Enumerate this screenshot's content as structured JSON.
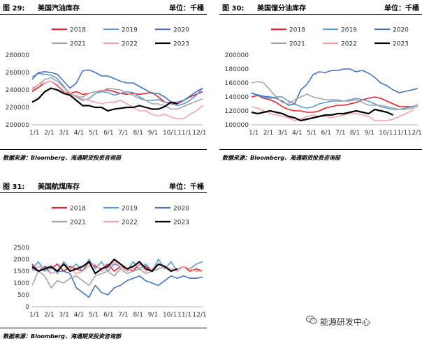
{
  "charts": [
    {
      "figure_number": "图 29:",
      "title": "美国汽油库存",
      "unit": "单位：千桶",
      "source": "数据来源：Bloomberg、海通期货投资咨询部"
    },
    {
      "figure_number": "图 30:",
      "title": "美国馏分油库存",
      "unit": "单位：千桶",
      "source": "数据来源：Bloomberg、海通期货投资咨询部"
    },
    {
      "figure_number": "图 31:",
      "title": "美国航煤库存",
      "unit": "单位：千桶",
      "source": "数据来源：Bloomberg、海通期货投资咨询部"
    }
  ],
  "watermark": {
    "text": "能源研发中心",
    "icon": "wechat-icon"
  },
  "series_colors": {
    "2018": "#e8202a",
    "2019": "#5b9bd5",
    "2020": "#4472c4",
    "2021": "#a6a6a6",
    "2022": "#f4a6a6",
    "2023": "#000000"
  },
  "chart_data": [
    {
      "type": "line",
      "title": "",
      "x_ticks": [
        "1/1",
        "2/1",
        "3/1",
        "4/1",
        "5/1",
        "6/1",
        "7/1",
        "8/1",
        "9/1",
        "10/1",
        "11/1",
        "12/1"
      ],
      "ylim": [
        200000,
        280000
      ],
      "y_ticks": [
        "200000",
        "220000",
        "240000",
        "260000",
        "280000"
      ],
      "legend_position": "top",
      "series": [
        {
          "name": "2018",
          "values": [
            238000,
            243000,
            248000,
            250000,
            245000,
            238000,
            236000,
            238000,
            235000,
            236000,
            238000,
            239000,
            240000,
            238000,
            236000,
            235000,
            236000,
            235000,
            236000,
            237000,
            232000,
            226000,
            225000,
            224000,
            228000,
            232000,
            235000,
            238000
          ]
        },
        {
          "name": "2019",
          "values": [
            255000,
            259000,
            258000,
            257000,
            253000,
            244000,
            236000,
            232000,
            228000,
            230000,
            236000,
            238000,
            237000,
            234000,
            236000,
            238000,
            237000,
            232000,
            228000,
            228000,
            229000,
            226000,
            224000,
            222000,
            224000,
            228000,
            234000,
            242000
          ]
        },
        {
          "name": "2020",
          "values": [
            252000,
            260000,
            261000,
            260000,
            258000,
            250000,
            242000,
            248000,
            262000,
            263000,
            260000,
            256000,
            256000,
            253000,
            250000,
            248000,
            248000,
            244000,
            240000,
            236000,
            236000,
            232000,
            226000,
            226000,
            228000,
            233000,
            238000,
            242000
          ]
        },
        {
          "name": "2021",
          "values": [
            240000,
            246000,
            252000,
            254000,
            250000,
            243000,
            236000,
            232000,
            232000,
            236000,
            238000,
            238000,
            242000,
            241000,
            240000,
            236000,
            234000,
            230000,
            228000,
            224000,
            224000,
            222000,
            218000,
            218000,
            221000,
            224000,
            227000,
            230000
          ]
        },
        {
          "name": "2022",
          "values": [
            242000,
            246000,
            248000,
            250000,
            246000,
            239000,
            234000,
            234000,
            230000,
            228000,
            226000,
            224000,
            226000,
            226000,
            228000,
            224000,
            220000,
            216000,
            216000,
            212000,
            210000,
            212000,
            209000,
            207000,
            207000,
            212000,
            216000,
            222000
          ]
        },
        {
          "name": "2023",
          "values": [
            226000,
            230000,
            238000,
            242000,
            240000,
            236000,
            234000,
            228000,
            222000,
            222000,
            220000,
            220000,
            216000,
            218000,
            219000,
            220000,
            220000,
            222000,
            220000,
            218000,
            218000,
            221000,
            226000,
            224000
          ]
        }
      ]
    },
    {
      "type": "line",
      "title": "",
      "x_ticks": [
        "1/1",
        "2/1",
        "3/1",
        "4/1",
        "5/1",
        "6/1",
        "7/1",
        "8/1",
        "9/1",
        "10/1",
        "11/1",
        "12/1"
      ],
      "ylim": [
        100000,
        200000
      ],
      "y_ticks": [
        "100000",
        "120000",
        "140000",
        "160000",
        "180000",
        "200000"
      ],
      "legend_position": "top",
      "series": [
        {
          "name": "2018",
          "values": [
            140000,
            142000,
            138000,
            136000,
            132000,
            126000,
            122000,
            120000,
            120000,
            118000,
            118000,
            120000,
            124000,
            126000,
            128000,
            128000,
            130000,
            132000,
            136000,
            138000,
            140000,
            138000,
            134000,
            130000,
            126000,
            126000,
            126000,
            128000
          ]
        },
        {
          "name": "2019",
          "values": [
            146000,
            142000,
            140000,
            138000,
            140000,
            140000,
            134000,
            130000,
            126000,
            124000,
            126000,
            130000,
            132000,
            134000,
            134000,
            134000,
            136000,
            138000,
            136000,
            134000,
            130000,
            126000,
            124000,
            122000,
            122000,
            124000,
            126000,
            128000
          ]
        },
        {
          "name": "2020",
          "values": [
            145000,
            143000,
            141000,
            140000,
            138000,
            134000,
            128000,
            130000,
            150000,
            158000,
            172000,
            176000,
            175000,
            178000,
            178000,
            180000,
            180000,
            176000,
            178000,
            174000,
            168000,
            160000,
            156000,
            150000,
            146000,
            148000,
            150000,
            152000
          ]
        },
        {
          "name": "2021",
          "values": [
            160000,
            162000,
            160000,
            150000,
            140000,
            132000,
            130000,
            136000,
            140000,
            144000,
            140000,
            138000,
            136000,
            136000,
            136000,
            134000,
            134000,
            136000,
            132000,
            128000,
            128000,
            128000,
            126000,
            124000,
            122000,
            122000,
            124000,
            126000
          ]
        },
        {
          "name": "2022",
          "values": [
            126000,
            124000,
            120000,
            116000,
            114000,
            112000,
            110000,
            106000,
            108000,
            112000,
            114000,
            112000,
            112000,
            110000,
            112000,
            114000,
            116000,
            116000,
            114000,
            112000,
            106000,
            106000,
            106000,
            108000,
            112000,
            116000,
            120000,
            130000
          ]
        },
        {
          "name": "2023",
          "values": [
            118000,
            116000,
            118000,
            120000,
            118000,
            116000,
            112000,
            110000,
            106000,
            108000,
            110000,
            112000,
            114000,
            114000,
            116000,
            116000,
            118000,
            120000,
            118000,
            116000,
            122000,
            120000,
            118000,
            114000
          ]
        }
      ]
    },
    {
      "type": "line",
      "title": "",
      "x_ticks": [
        "1/1",
        "2/1",
        "3/1",
        "4/1",
        "5/1",
        "6/1",
        "7/1",
        "8/1",
        "9/1",
        "10/1",
        "11/1",
        "12/1"
      ],
      "ylim": [
        0,
        2500
      ],
      "y_ticks": [
        "0",
        "500",
        "1000",
        "1500",
        "2000",
        "2500"
      ],
      "legend_position": "top",
      "series": [
        {
          "name": "2018",
          "values": [
            1800,
            1500,
            1700,
            1600,
            1800,
            1500,
            1700,
            1600,
            1500,
            1900,
            1700,
            1600,
            1800,
            1500,
            1700,
            1600,
            1500,
            1800,
            1700,
            1500,
            1600,
            1700,
            1500,
            1600,
            1700,
            1500,
            1600,
            1500
          ]
        },
        {
          "name": "2019",
          "values": [
            1600,
            1900,
            1500,
            1700,
            1400,
            1900,
            1600,
            1800,
            1500,
            2000,
            1600,
            1900,
            1500,
            1800,
            1700,
            1500,
            1900,
            1600,
            1800,
            1500,
            2000,
            1600,
            1900,
            1500,
            1700,
            1600,
            1800,
            1900
          ]
        },
        {
          "name": "2020",
          "values": [
            1600,
            1500,
            1700,
            1400,
            1500,
            1500,
            1400,
            800,
            600,
            400,
            900,
            600,
            500,
            800,
            900,
            1100,
            1200,
            1300,
            1100,
            1000,
            900,
            1100,
            1300,
            1200,
            1300,
            1200,
            1200,
            1250
          ]
        },
        {
          "name": "2021",
          "values": [
            900,
            1500,
            1300,
            800,
            1100,
            1000,
            1200,
            1300,
            1100,
            900,
            1300,
            1400,
            1500,
            1300,
            1600,
            1400,
            1500,
            1600,
            1400,
            1500,
            1600,
            1700,
            1500,
            1600,
            1700,
            1600,
            1500,
            1500
          ]
        },
        {
          "name": "2022",
          "values": [
            1500,
            1700,
            1600,
            1400,
            1500,
            1800,
            1600,
            1400,
            1500,
            1700,
            1800,
            1500,
            1600,
            1900,
            1700,
            1500,
            1600,
            1800,
            1500,
            1600,
            1800,
            1700,
            1600,
            1500,
            1700,
            1600,
            1500,
            1500
          ]
        },
        {
          "name": "2023",
          "values": [
            1700,
            1500,
            1600,
            1700,
            1500,
            1800,
            1500,
            1600,
            1700,
            1900,
            1400,
            1600,
            1700,
            2000,
            1800,
            1600,
            1700,
            1900,
            1600,
            1500,
            1800,
            1700,
            1500,
            1600
          ]
        }
      ]
    }
  ]
}
